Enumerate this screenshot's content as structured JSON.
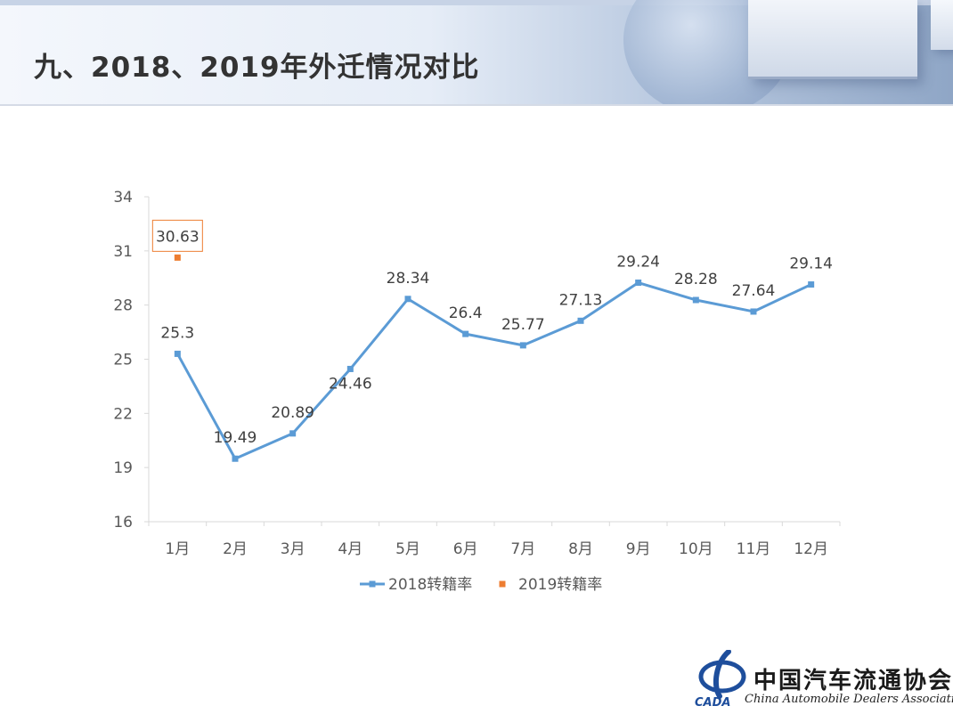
{
  "title": "九、2018、2019年外迁情况对比",
  "logo": {
    "name": "中国汽车流通协会",
    "subtitle": "China Automobile Dealers Association",
    "emblem_text": "CADA"
  },
  "colors": {
    "series_2018": "#5B9BD5",
    "series_2019": "#ED7D31",
    "axis": "#D9D9D9",
    "text": "#595959",
    "label": "#404040"
  },
  "chart_data": {
    "type": "line",
    "categories": [
      "1月",
      "2月",
      "3月",
      "4月",
      "5月",
      "6月",
      "7月",
      "8月",
      "9月",
      "10月",
      "11月",
      "12月"
    ],
    "series": [
      {
        "name": "2018转籍率",
        "values": [
          25.3,
          19.49,
          20.89,
          24.46,
          28.34,
          26.4,
          25.77,
          27.13,
          29.24,
          28.28,
          27.64,
          29.14
        ],
        "labels": [
          "25.3",
          "19.49",
          "20.89",
          "24.46",
          "28.34",
          "26.4",
          "25.77",
          "27.13",
          "29.24",
          "28.28",
          "27.64",
          "29.14"
        ]
      },
      {
        "name": "2019转籍率",
        "values": [
          30.63,
          null,
          null,
          null,
          null,
          null,
          null,
          null,
          null,
          null,
          null,
          null
        ],
        "labels": [
          "30.63"
        ]
      }
    ],
    "yticks": [
      "16",
      "19",
      "22",
      "25",
      "28",
      "31",
      "34"
    ],
    "ylim": [
      16,
      34
    ],
    "grid": false,
    "legend_position": "bottom"
  }
}
